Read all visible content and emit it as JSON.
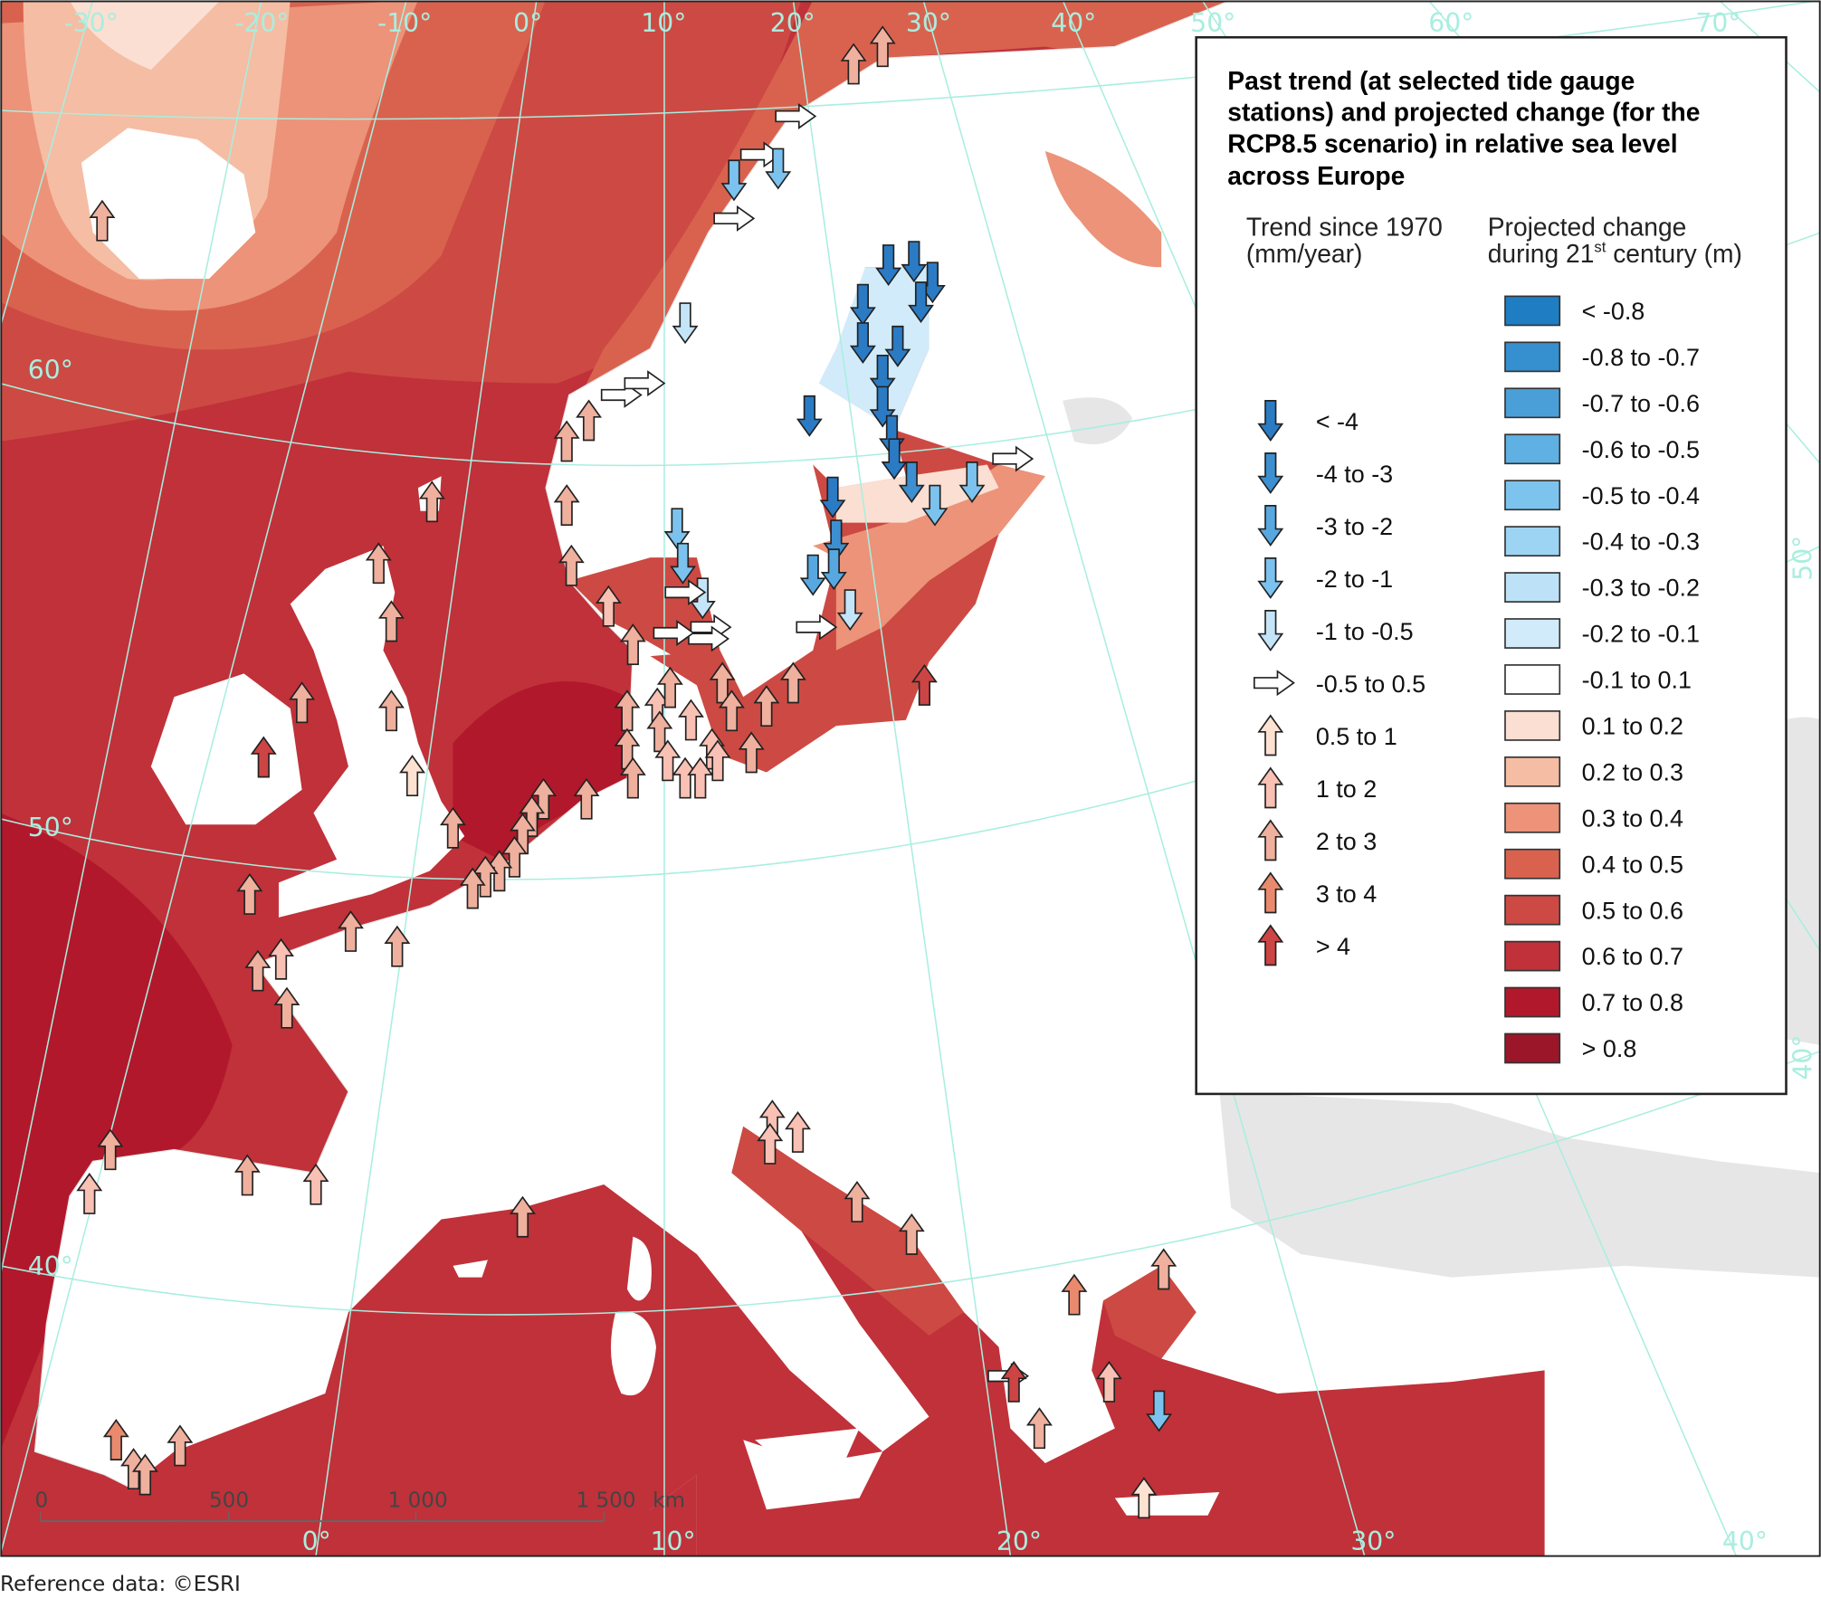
{
  "legend": {
    "title_lines": [
      "Past trend (at selected tide gauge",
      "stations) and projected change (for the",
      "RCP8.5 scenario) in relative sea level",
      "across Europe"
    ],
    "trend_heading": [
      "Trend since 1970",
      "(mm/year)"
    ],
    "projected_heading": {
      "line1": "Projected change",
      "line2_pre": "during 21",
      "line2_sup": "st",
      "line2_post": " century (m)"
    },
    "trend_classes": [
      {
        "label": "< -4",
        "direction": "down",
        "color": "#2b7bc4"
      },
      {
        "label": "-4 to -3",
        "direction": "down",
        "color": "#3d8fd0"
      },
      {
        "label": "-3 to -2",
        "direction": "down",
        "color": "#57a8e0"
      },
      {
        "label": "-2 to -1",
        "direction": "down",
        "color": "#7cc2ee"
      },
      {
        "label": "-1 to -0.5",
        "direction": "down",
        "color": "#c4e4f8"
      },
      {
        "label": "-0.5 to 0.5",
        "direction": "right",
        "color": "#ffffff"
      },
      {
        "label": "0.5 to 1",
        "direction": "up",
        "color": "#fde2d2"
      },
      {
        "label": "1 to 2",
        "direction": "up",
        "color": "#f9c0b4"
      },
      {
        "label": "2 to 3",
        "direction": "up",
        "color": "#efb09e"
      },
      {
        "label": "3 to 4",
        "direction": "up",
        "color": "#e98a6e"
      },
      {
        "label": "> 4",
        "direction": "up",
        "color": "#cd4444"
      }
    ],
    "projected_classes": [
      {
        "label": "< -0.8",
        "color": "#1f7ec3"
      },
      {
        "label": "-0.8 to -0.7",
        "color": "#368fcf"
      },
      {
        "label": "-0.7 to -0.6",
        "color": "#4a9fd9"
      },
      {
        "label": "-0.6 to -0.5",
        "color": "#5fb0e3"
      },
      {
        "label": "-0.5 to -0.4",
        "color": "#7cc4ee"
      },
      {
        "label": "-0.4 to -0.3",
        "color": "#9dd4f3"
      },
      {
        "label": "-0.3 to -0.2",
        "color": "#bde2f7"
      },
      {
        "label": "-0.2 to -0.1",
        "color": "#d2ebfa"
      },
      {
        "label": "-0.1 to 0.1",
        "color": "#ffffff"
      },
      {
        "label": "0.1 to 0.2",
        "color": "#fbdfd2"
      },
      {
        "label": "0.2 to 0.3",
        "color": "#f5bda4"
      },
      {
        "label": "0.3 to 0.4",
        "color": "#ec9379"
      },
      {
        "label": "0.4 to 0.5",
        "color": "#d9624f"
      },
      {
        "label": "0.5 to 0.6",
        "color": "#cc4a43"
      },
      {
        "label": "0.6 to 0.7",
        "color": "#c0313a"
      },
      {
        "label": "0.7 to 0.8",
        "color": "#b2182b"
      },
      {
        "label": "> 0.8",
        "color": "#9a1628"
      }
    ]
  },
  "graticule": {
    "top_meridians": [
      "-30°",
      "-20°",
      "-10°",
      "0°",
      "10°",
      "20°",
      "30°",
      "40°",
      "50°",
      "60°",
      "70°"
    ],
    "bottom_meridians": [
      "0°",
      "10°",
      "20°",
      "30°",
      "40°"
    ],
    "left_parallels": [
      "60°",
      "50°",
      "40°"
    ],
    "right_parallels": [
      "50°",
      "40°"
    ]
  },
  "scale_bar": {
    "ticks": [
      "0",
      "500",
      "1 000",
      "1 500"
    ],
    "unit": "km"
  },
  "footer": "Reference data: ©ESRI",
  "colors": {
    "land": "#ffffff",
    "non_covered": "#e6e6e6",
    "graticule": "#a9eedf",
    "border": "#e8e8e8"
  }
}
